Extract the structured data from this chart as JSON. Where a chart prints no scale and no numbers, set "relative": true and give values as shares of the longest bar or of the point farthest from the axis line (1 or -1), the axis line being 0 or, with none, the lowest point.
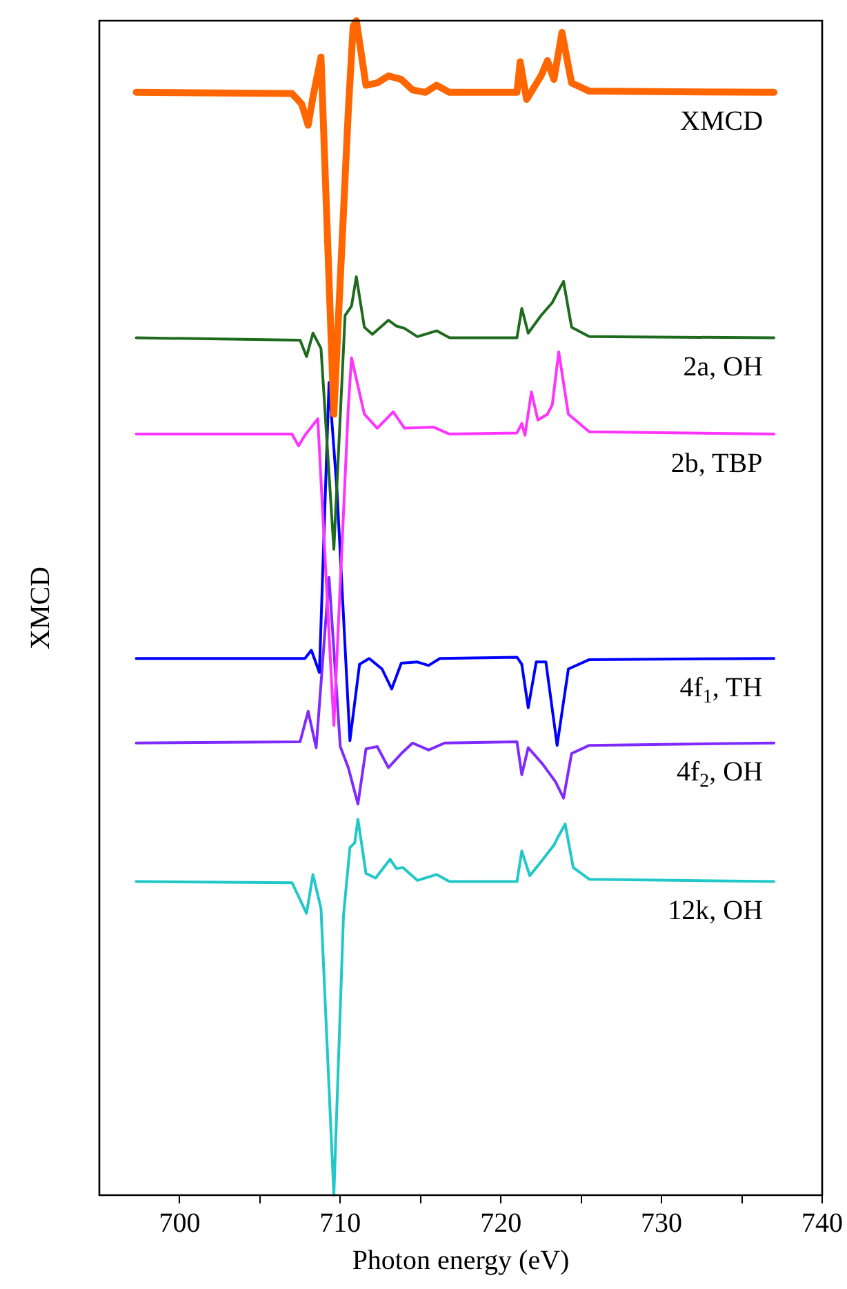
{
  "chart_data": {
    "type": "line",
    "relative": true,
    "xlabel": "Photon energy (eV)",
    "ylabel": "XMCD",
    "xlim": [
      695,
      740
    ],
    "xticks": [
      700,
      {
        "value": 705,
        "label": null
      },
      710,
      {
        "value": 715,
        "label": null
      },
      720,
      {
        "value": 725,
        "label": null
      },
      730,
      {
        "value": 735,
        "label": null
      },
      740
    ],
    "grid": false,
    "legend": false,
    "marker": "none",
    "line_style": "solid",
    "series": [
      {
        "name": "XMCD",
        "color": "#ff6600",
        "x": [
          697.3,
          707.0,
          707.6,
          708.0,
          708.3,
          708.8,
          709.6,
          710.5,
          710.8,
          711.0,
          711.6,
          712.3,
          713.0,
          713.8,
          714.5,
          715.3,
          716.0,
          716.8,
          721.0,
          721.2,
          721.6,
          722.5,
          722.9,
          723.3,
          723.8,
          724.4,
          725.5,
          737.0
        ],
        "values": [
          0.939,
          0.938,
          0.929,
          0.911,
          0.935,
          0.969,
          0.665,
          0.923,
          0.995,
          1.0,
          0.945,
          0.947,
          0.953,
          0.95,
          0.941,
          0.939,
          0.945,
          0.939,
          0.939,
          0.965,
          0.933,
          0.953,
          0.966,
          0.95,
          0.99,
          0.947,
          0.94,
          0.939
        ]
      },
      {
        "name": "2a, OH",
        "color": "#1e6b1e",
        "x": [
          697.3,
          707.5,
          707.9,
          708.3,
          708.8,
          709.6,
          710.3,
          710.7,
          711.0,
          711.5,
          712.0,
          713.0,
          713.5,
          714.0,
          714.8,
          716.0,
          716.8,
          721.0,
          721.3,
          721.7,
          722.5,
          723.2,
          723.5,
          723.9,
          724.4,
          725.5,
          737.0
        ],
        "values": [
          0.73,
          0.728,
          0.714,
          0.734,
          0.721,
          0.55,
          0.749,
          0.757,
          0.782,
          0.739,
          0.733,
          0.745,
          0.74,
          0.738,
          0.731,
          0.736,
          0.73,
          0.73,
          0.755,
          0.734,
          0.749,
          0.76,
          0.768,
          0.778,
          0.739,
          0.731,
          0.73
        ]
      },
      {
        "name": "2b, TBP",
        "color": "#ff33ff",
        "x": [
          697.3,
          707.0,
          707.4,
          707.8,
          708.6,
          709.6,
          710.5,
          710.7,
          711.5,
          712.3,
          713.3,
          714.0,
          715.8,
          716.8,
          721.0,
          721.3,
          721.5,
          721.9,
          722.3,
          722.9,
          723.2,
          723.6,
          724.2,
          725.5,
          737.0
        ],
        "values": [
          0.648,
          0.648,
          0.638,
          0.647,
          0.661,
          0.4,
          0.671,
          0.713,
          0.665,
          0.653,
          0.667,
          0.653,
          0.654,
          0.648,
          0.649,
          0.657,
          0.647,
          0.684,
          0.66,
          0.665,
          0.673,
          0.718,
          0.665,
          0.65,
          0.648
        ]
      },
      {
        "name": "4f$_{1}$, TH",
        "color": "#0000ff",
        "x": [
          697.3,
          707.8,
          708.2,
          708.7,
          709.3,
          709.8,
          710.6,
          711.2,
          711.8,
          712.6,
          713.2,
          713.8,
          714.8,
          715.5,
          716.2,
          721.0,
          721.3,
          721.7,
          722.2,
          722.8,
          723.5,
          724.2,
          725.5,
          737.0
        ],
        "values": [
          0.457,
          0.457,
          0.464,
          0.445,
          0.692,
          0.599,
          0.387,
          0.452,
          0.457,
          0.448,
          0.431,
          0.453,
          0.454,
          0.451,
          0.457,
          0.458,
          0.452,
          0.415,
          0.454,
          0.454,
          0.383,
          0.448,
          0.456,
          0.457
        ]
      },
      {
        "name": "4f$_{2}$, OH",
        "color": "#7f2bff",
        "x": [
          697.3,
          707.5,
          708.0,
          708.5,
          709.3,
          710.0,
          710.5,
          711.1,
          711.6,
          712.3,
          713.0,
          713.8,
          714.5,
          715.5,
          716.5,
          721.0,
          721.3,
          721.7,
          722.6,
          723.4,
          723.9,
          724.4,
          725.5,
          737.0
        ],
        "values": [
          0.385,
          0.386,
          0.412,
          0.381,
          0.526,
          0.382,
          0.364,
          0.333,
          0.38,
          0.382,
          0.364,
          0.376,
          0.385,
          0.379,
          0.385,
          0.386,
          0.358,
          0.381,
          0.367,
          0.352,
          0.338,
          0.376,
          0.383,
          0.385
        ]
      },
      {
        "name": "12k, OH",
        "color": "#22c8c8",
        "x": [
          697.3,
          707.0,
          707.9,
          708.3,
          708.8,
          709.6,
          710.2,
          710.6,
          710.9,
          711.1,
          711.6,
          712.2,
          713.1,
          713.5,
          713.9,
          714.8,
          716.0,
          716.8,
          721.0,
          721.3,
          721.8,
          722.5,
          723.3,
          723.6,
          724.0,
          724.5,
          725.5,
          737.0
        ],
        "values": [
          0.267,
          0.266,
          0.24,
          0.273,
          0.244,
          0.0,
          0.238,
          0.296,
          0.3,
          0.32,
          0.274,
          0.27,
          0.286,
          0.278,
          0.279,
          0.268,
          0.273,
          0.267,
          0.267,
          0.293,
          0.272,
          0.284,
          0.298,
          0.306,
          0.316,
          0.279,
          0.269,
          0.267
        ]
      }
    ]
  }
}
